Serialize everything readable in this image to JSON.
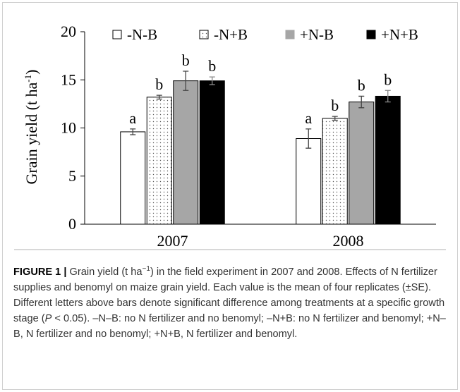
{
  "chart_data": {
    "type": "bar",
    "ylabel": [
      "Grain yield (t ha",
      "-1",
      ")"
    ],
    "categories": [
      "2007",
      "2008"
    ],
    "series": [
      {
        "name": "-N-B",
        "color": "#ffffff",
        "pattern": "none",
        "values": [
          9.6,
          8.9
        ],
        "errors": [
          0.3,
          1.0
        ],
        "letters": [
          "a",
          "a"
        ]
      },
      {
        "name": "-N+B",
        "color": "#ffffff",
        "pattern": "dots",
        "values": [
          13.2,
          11.0
        ],
        "errors": [
          0.2,
          0.2
        ],
        "letters": [
          "b",
          "b"
        ]
      },
      {
        "name": "+N-B",
        "color": "#a6a6a6",
        "pattern": "none",
        "values": [
          14.9,
          12.7
        ],
        "errors": [
          1.0,
          0.6
        ],
        "letters": [
          "b",
          "b"
        ]
      },
      {
        "name": "+N+B",
        "color": "#000000",
        "pattern": "none",
        "values": [
          14.9,
          13.3
        ],
        "errors": [
          0.4,
          0.6
        ],
        "letters": [
          "b",
          "b"
        ]
      }
    ],
    "ylim": [
      0,
      20
    ],
    "yticks": [
      0,
      5,
      10,
      15,
      20
    ],
    "legend": "top"
  },
  "caption": [
    "FIGURE 1 |",
    " Grain yield (t ha",
    "−1",
    ") in the field experiment in 2007 and 2008. Effects of N fertilizer supplies and benomyl on maize grain yield. Each value is the mean of four replicates (±SE). Different letters above bars denote significant difference among treatments at a specific growth stage (",
    "P",
    " < 0.05). –N–B: no N fertilizer and no benomyl; –N+B: no N fertilizer and benomyl; +N–B, N fertilizer and no benomyl; +N+B, N fertilizer and benomyl."
  ]
}
